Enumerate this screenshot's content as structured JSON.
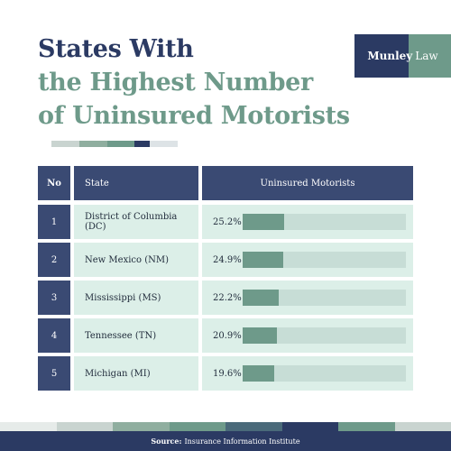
{
  "title": {
    "line1": "States With",
    "line2": "the Highest Number",
    "line3": "of Uninsured Motorists"
  },
  "logo": {
    "brand": "Munley",
    "suffix": "Law"
  },
  "table": {
    "headers": {
      "no": "No",
      "state": "State",
      "value": "Uninsured Motorists"
    }
  },
  "chart_data": {
    "type": "bar",
    "orientation": "horizontal",
    "title": "States With the Highest Number of Uninsured Motorists",
    "xlim": [
      0,
      100
    ],
    "rows": [
      {
        "no": "1",
        "state": "District of Columbia (DC)",
        "value": 25.2,
        "label": "25.2%"
      },
      {
        "no": "2",
        "state": "New Mexico (NM)",
        "value": 24.9,
        "label": "24.9%"
      },
      {
        "no": "3",
        "state": "Mississippi (MS)",
        "value": 22.2,
        "label": "22.2%"
      },
      {
        "no": "4",
        "state": "Tennessee (TN)",
        "value": 20.9,
        "label": "20.9%"
      },
      {
        "no": "5",
        "state": "Michigan (MI)",
        "value": 19.6,
        "label": "19.6%"
      }
    ]
  },
  "footer": {
    "source_label": "Source:",
    "source_text": "Insurance Information Institute"
  },
  "colors": {
    "navy": "#2b3a63",
    "header": "#3a4a73",
    "green": "#6e9a8a",
    "row_bg": "#dcefe8",
    "track": "#c7ddd6"
  }
}
